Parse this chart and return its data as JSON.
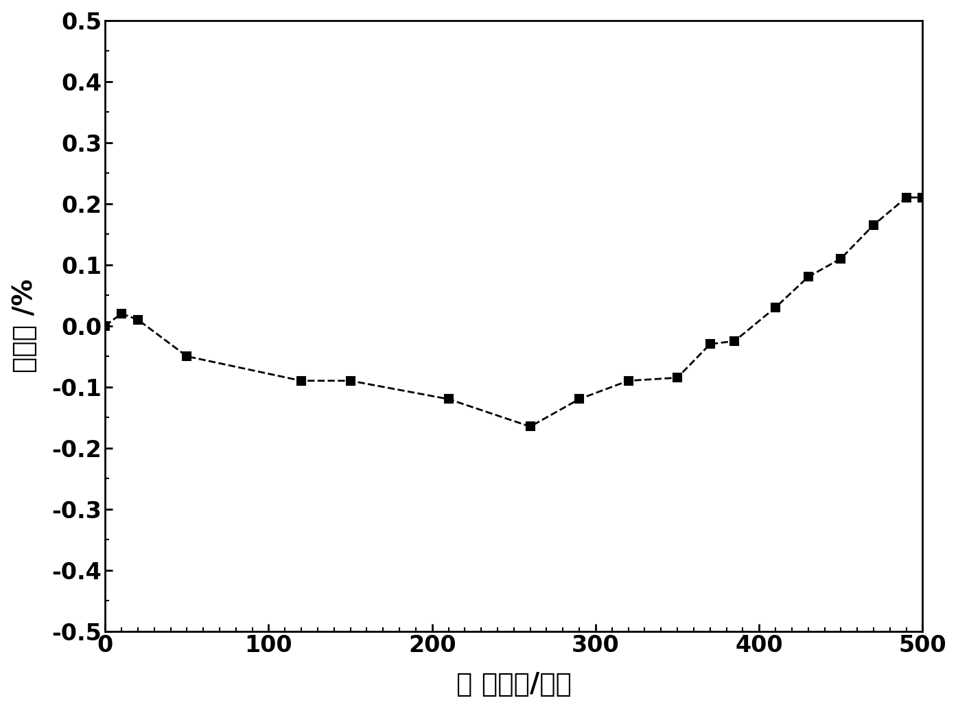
{
  "x": [
    0,
    10,
    20,
    50,
    120,
    150,
    210,
    260,
    290,
    320,
    350,
    370,
    385,
    410,
    430,
    450,
    470,
    490,
    500
  ],
  "y": [
    0.0,
    0.02,
    0.01,
    -0.05,
    -0.09,
    -0.09,
    -0.12,
    -0.165,
    -0.12,
    -0.09,
    -0.085,
    -0.03,
    -0.025,
    0.03,
    0.08,
    0.11,
    0.165,
    0.21,
    0.21
  ],
  "xlim": [
    0,
    500
  ],
  "ylim": [
    -0.5,
    0.5
  ],
  "xticks": [
    0,
    100,
    200,
    300,
    400,
    500
  ],
  "yticks": [
    -0.5,
    -0.4,
    -0.3,
    -0.2,
    -0.1,
    0.0,
    0.1,
    0.2,
    0.3,
    0.4,
    0.5
  ],
  "xlabel": "氧化时间/小时",
  "ylabel": "失重率 /%",
  "line_color": "#000000",
  "marker": "s",
  "marker_size": 9,
  "line_width": 2.0,
  "line_style": "--",
  "background_color": "#ffffff",
  "tick_fontsize": 24,
  "label_fontsize": 28,
  "figure_width": 13.96,
  "figure_height": 10.33
}
